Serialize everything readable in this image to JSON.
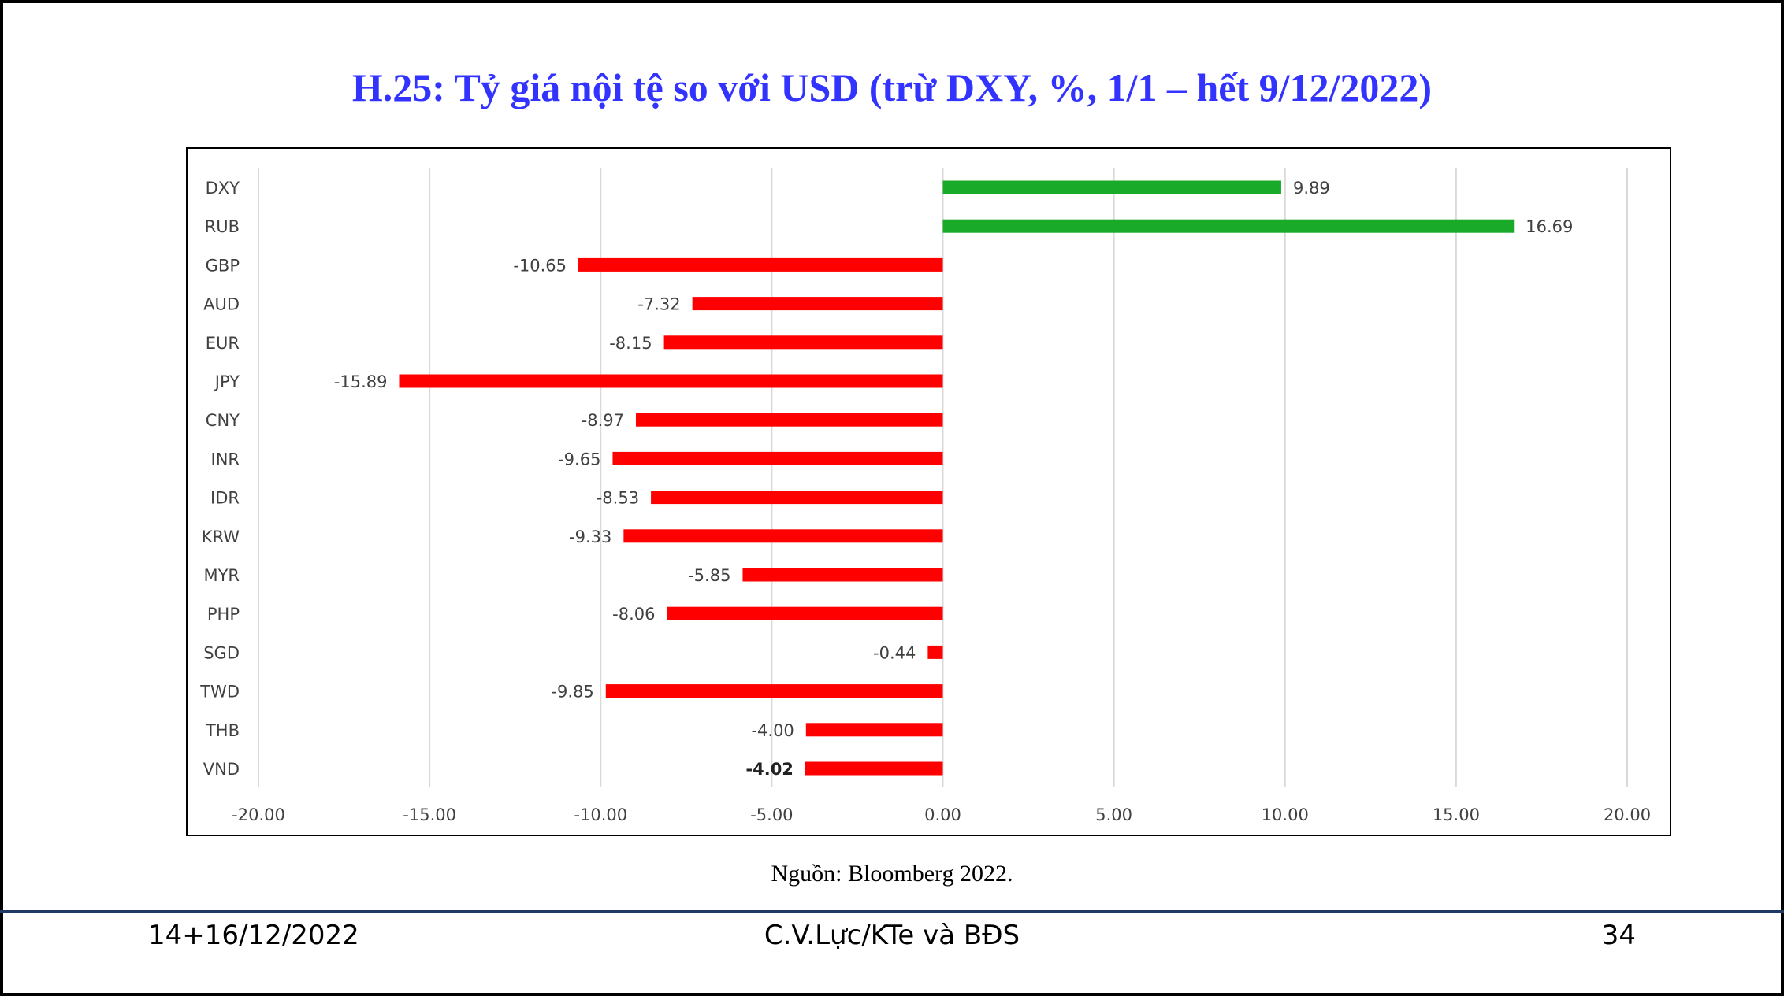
{
  "title": "H.25: Tỷ giá nội tệ so với USD (trừ DXY, %, 1/1 – hết 9/12/2022)",
  "source": "Nguồn: Bloomberg 2022.",
  "footer": {
    "date": "14+16/12/2022",
    "author": "C.V.Lực/KTe và BĐS",
    "page": "34"
  },
  "colors": {
    "title": "#3333ff",
    "positive": "#1aaa2a",
    "negative": "#ff0000",
    "grid": "#d9d9d9",
    "text": "#404040"
  },
  "chart_data": {
    "type": "bar",
    "orientation": "horizontal",
    "categories": [
      "DXY",
      "RUB",
      "GBP",
      "AUD",
      "EUR",
      "JPY",
      "CNY",
      "INR",
      "IDR",
      "KRW",
      "MYR",
      "PHP",
      "SGD",
      "TWD",
      "THB",
      "VND"
    ],
    "values": [
      9.89,
      16.69,
      -10.65,
      -7.32,
      -8.15,
      -15.89,
      -8.97,
      -9.65,
      -8.53,
      -9.33,
      -5.85,
      -8.06,
      -0.44,
      -9.85,
      -4.0,
      -4.02
    ],
    "value_labels": [
      "9.89",
      "16.69",
      "-10.65",
      "-7.32",
      "-8.15",
      "-15.89",
      "-8.97",
      "-9.65",
      "-8.53",
      "-9.33",
      "-5.85",
      "-8.06",
      "-0.44",
      "-9.85",
      "-4.00",
      "-4.02"
    ],
    "bold_labels": [
      "VND"
    ],
    "xlim": [
      -20,
      20
    ],
    "xticks": [
      -20,
      -15,
      -10,
      -5,
      0,
      5,
      10,
      15,
      20
    ],
    "xtick_labels": [
      "-20.00",
      "-15.00",
      "-10.00",
      "-5.00",
      "0.00",
      "5.00",
      "10.00",
      "15.00",
      "20.00"
    ],
    "grid": true,
    "legend": "none"
  }
}
